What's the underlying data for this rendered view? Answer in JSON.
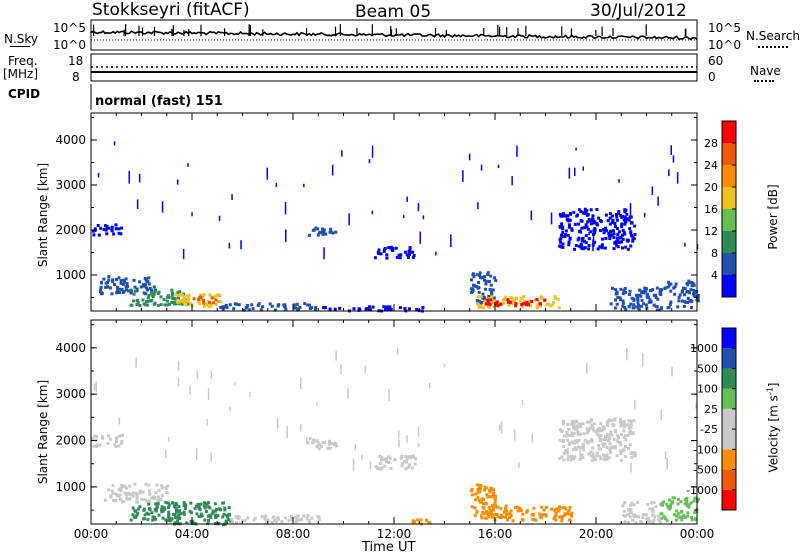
{
  "header": {
    "station": "Stokkseyri (fitACF)",
    "beam": "Beam 05",
    "date": "30/Jul/2012"
  },
  "top_panels": {
    "nsky_label": "N.Sky",
    "nsky_ticks": [
      "10^5",
      "10^0"
    ],
    "nsearch_label": "N.Search",
    "nsearch_ticks": [
      "10^5",
      "10^0"
    ],
    "freq_label": "Freq.",
    "freq_unit": "[MHz]",
    "freq_ticks": [
      "18",
      "8"
    ],
    "nave_label": "Nave",
    "nave_ticks": [
      "60",
      "0"
    ],
    "cpid_label": "CPID",
    "cpid_value": "normal (fast) 151"
  },
  "colors": {
    "power_scale": [
      "#0000ff",
      "#1f4fb0",
      "#2e8b57",
      "#66c055",
      "#f0c020",
      "#ff8c00",
      "#f05a00",
      "#ff0000"
    ],
    "velocity_scale": [
      "#ff0000",
      "#f05a00",
      "#ff8c00",
      "#c8c8c8",
      "#c8c8c8",
      "#66c055",
      "#2e8b57",
      "#1f4fb0",
      "#0000ff"
    ]
  },
  "chart_data": [
    {
      "type": "heatmap",
      "name": "power",
      "ylabel": "Slant Range [km]",
      "yticks": [
        "1000",
        "2000",
        "3000",
        "4000"
      ],
      "ylim": [
        200,
        4600
      ],
      "colorbar_label": "Power [dB]",
      "colorbar_ticks": [
        "4",
        "8",
        "12",
        "16",
        "20",
        "24",
        "28"
      ],
      "colorbar_range": [
        0,
        32
      ],
      "regions": [
        {
          "t0": 0.0,
          "t1": 1.2,
          "r0": 1900,
          "r1": 2150,
          "v": 3
        },
        {
          "t0": 0.3,
          "t1": 2.5,
          "r0": 600,
          "r1": 1000,
          "v": 6
        },
        {
          "t0": 1.5,
          "t1": 3.8,
          "r0": 350,
          "r1": 700,
          "v": 10
        },
        {
          "t0": 3.3,
          "t1": 5.2,
          "r0": 300,
          "r1": 600,
          "v": 18
        },
        {
          "t0": 4.0,
          "t1": 5.0,
          "r0": 400,
          "r1": 550,
          "v": 26
        },
        {
          "t0": 5.0,
          "t1": 9.0,
          "r0": 250,
          "r1": 400,
          "v": 4
        },
        {
          "t0": 9.0,
          "t1": 13.2,
          "r0": 230,
          "r1": 330,
          "v": 3
        },
        {
          "t0": 8.5,
          "t1": 9.7,
          "r0": 1900,
          "r1": 2100,
          "v": 4
        },
        {
          "t0": 11.2,
          "t1": 12.8,
          "r0": 1400,
          "r1": 1650,
          "v": 3
        },
        {
          "t0": 15.0,
          "t1": 16.0,
          "r0": 380,
          "r1": 1100,
          "v": 4
        },
        {
          "t0": 15.2,
          "t1": 18.5,
          "r0": 300,
          "r1": 560,
          "v": 18
        },
        {
          "t0": 15.6,
          "t1": 18.0,
          "r0": 350,
          "r1": 500,
          "v": 28
        },
        {
          "t0": 18.5,
          "t1": 21.5,
          "r0": 1600,
          "r1": 2500,
          "v": 3
        },
        {
          "t0": 20.5,
          "t1": 22.8,
          "r0": 250,
          "r1": 750,
          "v": 6
        },
        {
          "t0": 22.8,
          "t1": 24.0,
          "r0": 300,
          "r1": 900,
          "v": 6
        }
      ]
    },
    {
      "type": "heatmap",
      "name": "velocity",
      "ylabel": "Slant Range [km]",
      "yticks": [
        "1000",
        "2000",
        "3000",
        "4000"
      ],
      "ylim": [
        200,
        4600
      ],
      "colorbar_label": "Velocity [m s",
      "colorbar_label_exponent": "-1",
      "colorbar_ticks": [
        "-1000",
        "-500",
        "-100",
        "-25",
        "25",
        "100",
        "500",
        "1000"
      ],
      "regions": [
        {
          "t0": 0.0,
          "t1": 1.2,
          "r0": 1900,
          "r1": 2150,
          "v": 4
        },
        {
          "t0": 0.5,
          "t1": 3.0,
          "r0": 700,
          "r1": 1100,
          "v": 4
        },
        {
          "t0": 1.5,
          "t1": 3.5,
          "r0": 300,
          "r1": 700,
          "v": 6
        },
        {
          "t0": 3.0,
          "t1": 5.5,
          "r0": 220,
          "r1": 700,
          "v": 6
        },
        {
          "t0": 5.5,
          "t1": 9.0,
          "r0": 250,
          "r1": 420,
          "v": 3
        },
        {
          "t0": 8.5,
          "t1": 9.7,
          "r0": 1850,
          "r1": 2100,
          "v": 4
        },
        {
          "t0": 11.2,
          "t1": 12.8,
          "r0": 1400,
          "r1": 1700,
          "v": 3
        },
        {
          "t0": 12.6,
          "t1": 13.4,
          "r0": 230,
          "r1": 330,
          "v": 2
        },
        {
          "t0": 15.0,
          "t1": 16.0,
          "r0": 380,
          "r1": 1100,
          "v": 2
        },
        {
          "t0": 15.3,
          "t1": 19.0,
          "r0": 300,
          "r1": 620,
          "v": 2
        },
        {
          "t0": 18.5,
          "t1": 21.5,
          "r0": 1600,
          "r1": 2500,
          "v": 4
        },
        {
          "t0": 21.0,
          "t1": 22.5,
          "r0": 250,
          "r1": 700,
          "v": 4
        },
        {
          "t0": 22.5,
          "t1": 24.0,
          "r0": 300,
          "r1": 800,
          "v": 5
        }
      ]
    }
  ],
  "x_axis": {
    "label": "Time UT",
    "ticks": [
      "00:00",
      "04:00",
      "08:00",
      "12:00",
      "16:00",
      "20:00",
      "00:00"
    ],
    "xlim": [
      0,
      24
    ]
  }
}
